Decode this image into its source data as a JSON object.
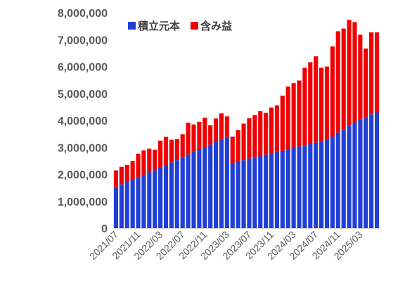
{
  "chart_data": {
    "type": "bar",
    "stacked": true,
    "title": "",
    "xlabel": "",
    "ylabel": "",
    "ylim": [
      0,
      8000000
    ],
    "yticks": [
      0,
      1000000,
      2000000,
      3000000,
      4000000,
      5000000,
      6000000,
      7000000,
      8000000
    ],
    "ytick_labels": [
      "0",
      "1,000,000",
      "2,000,000",
      "3,000,000",
      "4,000,000",
      "5,000,000",
      "6,000,000",
      "7,000,000",
      "8,000,000"
    ],
    "legend_position": "top-left",
    "grid": false,
    "categories": [
      "2021/07",
      "2021/08",
      "2021/09",
      "2021/10",
      "2021/11",
      "2021/12",
      "2022/01",
      "2022/02",
      "2022/03",
      "2022/04",
      "2022/05",
      "2022/06",
      "2022/07",
      "2022/08",
      "2022/09",
      "2022/10",
      "2022/11",
      "2022/12",
      "2023/01",
      "2023/02",
      "2023/03",
      "2023/04",
      "2023/05",
      "2023/06",
      "2023/07",
      "2023/08",
      "2023/09",
      "2023/10",
      "2023/11",
      "2023/12",
      "2024/01",
      "2024/02",
      "2024/03",
      "2024/04",
      "2024/05",
      "2024/06",
      "2024/07",
      "2024/08",
      "2024/09",
      "2024/10",
      "2024/11",
      "2024/12",
      "2025/01",
      "2025/02",
      "2025/03",
      "2025/04",
      "2025/05",
      "2025/06"
    ],
    "xtick_labels": [
      "2021/07",
      "2021/11",
      "2022/03",
      "2022/07",
      "2022/11",
      "2023/03",
      "2023/07",
      "2023/11",
      "2024/03",
      "2024/07",
      "2024/11",
      "2025/03"
    ],
    "series": [
      {
        "name": "積立元本",
        "color": "#1f3fd6",
        "values": [
          1500000,
          1630000,
          1710000,
          1800000,
          1900000,
          1980000,
          2080000,
          2150000,
          2250000,
          2350000,
          2440000,
          2530000,
          2630000,
          2730000,
          2830000,
          2930000,
          3010000,
          3100000,
          3200000,
          3290000,
          3380000,
          2400000,
          2470000,
          2530000,
          2580000,
          2630000,
          2680000,
          2730000,
          2780000,
          2830000,
          2880000,
          2930000,
          2980000,
          3030000,
          3080000,
          3130000,
          3180000,
          3240000,
          3300000,
          3400000,
          3550000,
          3680000,
          3800000,
          3920000,
          4030000,
          4130000,
          4230000,
          4300000
        ]
      },
      {
        "name": "含み益",
        "color": "#f00000",
        "values": [
          640000,
          650000,
          640000,
          690000,
          860000,
          910000,
          870000,
          760000,
          1000000,
          1040000,
          840000,
          780000,
          860000,
          1180000,
          1020000,
          1020000,
          1090000,
          720000,
          870000,
          970000,
          770000,
          1000000,
          1170000,
          1350000,
          1500000,
          1570000,
          1660000,
          1550000,
          1700000,
          1730000,
          2040000,
          2330000,
          2400000,
          2450000,
          2880000,
          3030000,
          3200000,
          2720000,
          2700000,
          3350000,
          3760000,
          3730000,
          3930000,
          3730000,
          3150000,
          2540000,
          3040000,
          2970000
        ]
      }
    ]
  }
}
